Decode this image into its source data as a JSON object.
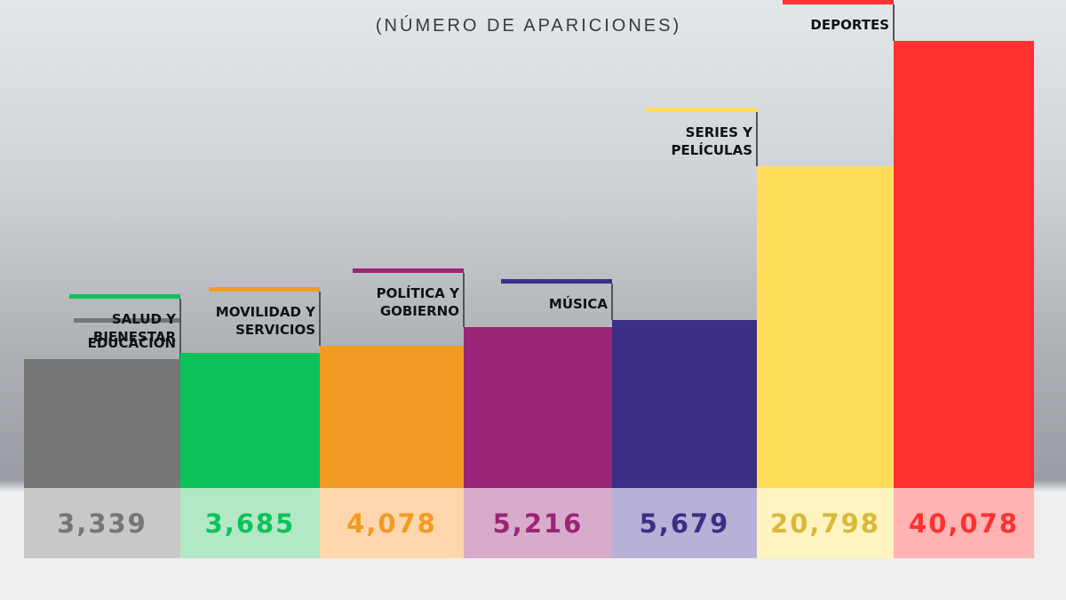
{
  "chart_data": {
    "type": "bar",
    "subtitle": "(NÚMERO DE APARICIONES)",
    "categories": [
      "EDUCACIÓN",
      "SALUD Y BIENESTAR",
      "MOVILIDAD Y SERVICIOS",
      "POLÍTICA Y GOBIERNO",
      "MÚSICA",
      "SERIES Y PELÍCULAS",
      "DEPORTES"
    ],
    "label_lines": [
      [
        "EDUCACIÓN"
      ],
      [
        "SALUD Y",
        "BIENESTAR"
      ],
      [
        "MOVILIDAD Y",
        "SERVICIOS"
      ],
      [
        "POLÍTICA Y",
        "GOBIERNO"
      ],
      [
        "MÚSICA"
      ],
      [
        "SERIES Y",
        "PELÍCULAS"
      ],
      [
        "DEPORTES"
      ]
    ],
    "values": [
      3339,
      3685,
      4078,
      5216,
      5679,
      20798,
      40078
    ],
    "value_labels": [
      "3,339",
      "3,685",
      "4,078",
      "5,216",
      "5,679",
      "20,798",
      "40,078"
    ],
    "colors": [
      "#767676",
      "#0cc25a",
      "#f39a23",
      "#9a2577",
      "#3b2f86",
      "#ffdd5a",
      "#ff3131"
    ],
    "cell_colors": [
      "#c8c8c8",
      "#b3e8c6",
      "#fdd7ab",
      "#d9abcb",
      "#b7b1d8",
      "#fff4c0",
      "#ffb3b3"
    ],
    "text_colors": [
      "#767676",
      "#0cc25a",
      "#f39a23",
      "#9a2577",
      "#3b2f86",
      "#d9b93a",
      "#ff3131"
    ]
  }
}
